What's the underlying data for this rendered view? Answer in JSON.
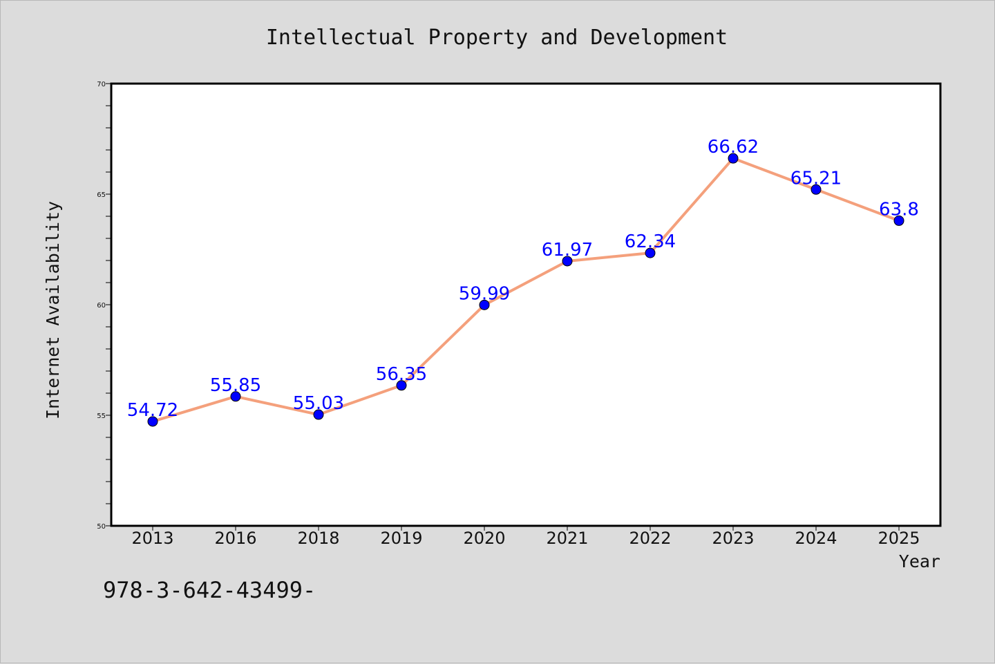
{
  "chart_data": {
    "type": "line",
    "title": "Intellectual Property and Development",
    "xlabel": "Year",
    "ylabel": "Internet Availability",
    "categories": [
      "2013",
      "2016",
      "2018",
      "2019",
      "2020",
      "2021",
      "2022",
      "2023",
      "2024",
      "2025"
    ],
    "series": [
      {
        "values": [
          54.72,
          55.85,
          55.03,
          56.35,
          59.99,
          61.97,
          62.34,
          66.62,
          65.21,
          63.8
        ],
        "data_labels": [
          "54.72",
          "55.85",
          "55.03",
          "56.35",
          "59.99",
          "61.97",
          "62.34",
          "66.62",
          "65.21",
          "63.8"
        ],
        "line_color": "#f4a07c",
        "marker_color": "#0000ff"
      }
    ],
    "ylim": [
      50,
      70
    ],
    "yticks": [
      "50",
      "55",
      "60",
      "65",
      "70"
    ],
    "grid": false,
    "legend": "none"
  },
  "footer": {
    "isbn_text": "978-3-642-43499-"
  }
}
